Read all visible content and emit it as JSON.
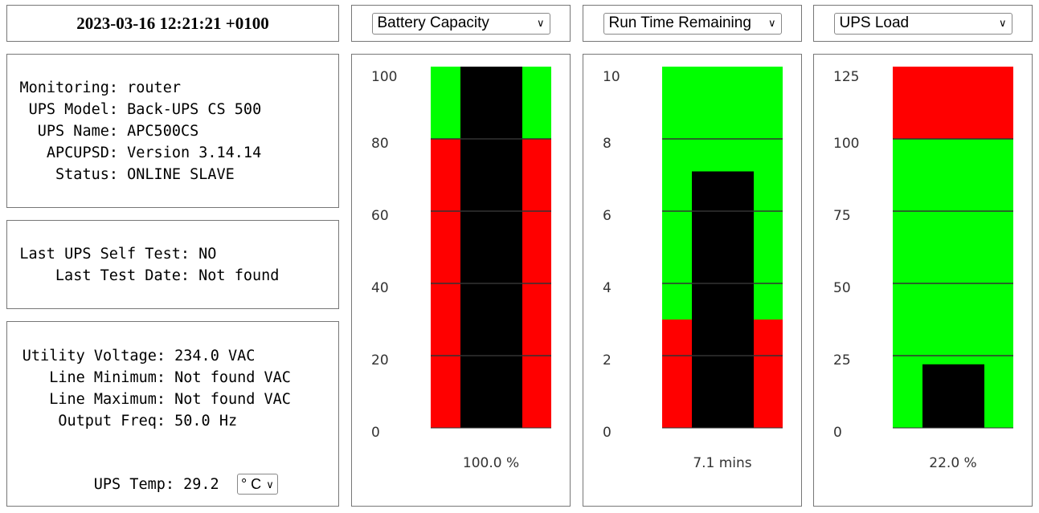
{
  "clock": "2023-03-16 12:21:21 +0100",
  "status": [
    [
      "Monitoring:",
      "router"
    ],
    [
      "UPS Model:",
      "Back-UPS CS 500"
    ],
    [
      "UPS Name:",
      "APC500CS"
    ],
    [
      "APCUPSD:",
      "Version 3.14.14"
    ],
    [
      "Status:",
      "ONLINE SLAVE"
    ]
  ],
  "test": [
    [
      "Last UPS Self Test:",
      "NO"
    ],
    [
      "Last Test Date:",
      "Not found"
    ]
  ],
  "power": [
    [
      "Utility Voltage:",
      "234.0 VAC"
    ],
    [
      "Line Minimum:",
      "Not found VAC"
    ],
    [
      "Line Maximum:",
      "Not found VAC"
    ],
    [
      "Output Freq:",
      "50.0 Hz"
    ]
  ],
  "temp": {
    "label": "UPS Temp:",
    "value": "29.2",
    "unit": "° C"
  },
  "colors": {
    "good": "#00ff00",
    "bad": "#ff0000",
    "bar": "#000000"
  },
  "chart_data": [
    {
      "type": "bar",
      "selector": "Battery Capacity",
      "ylim": [
        0,
        100
      ],
      "ticks": [
        0,
        20,
        40,
        60,
        80,
        100
      ],
      "value": 100.0,
      "label": "100.0 %",
      "red_zone": [
        0,
        80
      ]
    },
    {
      "type": "bar",
      "selector": "Run Time Remaining",
      "ylim": [
        0,
        10
      ],
      "ticks": [
        0,
        2,
        4,
        6,
        8,
        10
      ],
      "value": 7.1,
      "label": "7.1 mins",
      "red_zone": [
        0,
        3
      ]
    },
    {
      "type": "bar",
      "selector": "UPS Load",
      "ylim": [
        0,
        125
      ],
      "ticks": [
        0,
        25,
        50,
        75,
        100,
        125
      ],
      "value": 22.0,
      "label": "22.0 %",
      "red_zone": [
        100,
        125
      ]
    }
  ]
}
